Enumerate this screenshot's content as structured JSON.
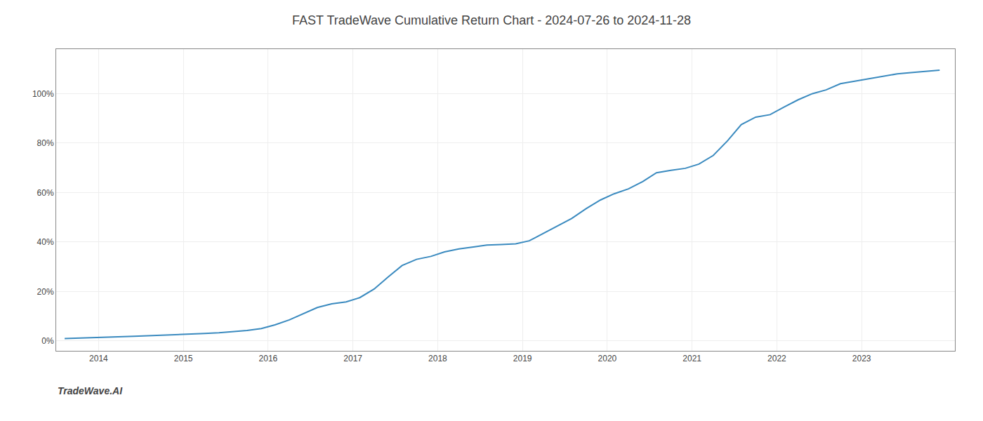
{
  "chart_data": {
    "type": "line",
    "title": "FAST TradeWave Cumulative Return Chart - 2024-07-26 to 2024-11-28",
    "annotations": [
      "TradeWave.AI"
    ],
    "color": "#3a8abf",
    "grid": true,
    "x": [
      2013.6,
      2013.75,
      2013.92,
      2014.08,
      2014.25,
      2014.42,
      2014.58,
      2014.75,
      2014.92,
      2015.08,
      2015.25,
      2015.42,
      2015.58,
      2015.75,
      2015.92,
      2016.08,
      2016.25,
      2016.42,
      2016.58,
      2016.75,
      2016.92,
      2017.08,
      2017.25,
      2017.42,
      2017.58,
      2017.75,
      2017.92,
      2018.08,
      2018.25,
      2018.42,
      2018.58,
      2018.75,
      2018.92,
      2019.08,
      2019.25,
      2019.42,
      2019.58,
      2019.75,
      2019.92,
      2020.08,
      2020.25,
      2020.42,
      2020.58,
      2020.75,
      2020.92,
      2021.08,
      2021.25,
      2021.42,
      2021.58,
      2021.75,
      2021.92,
      2022.08,
      2022.25,
      2022.42,
      2022.58,
      2022.75,
      2022.92,
      2023.08,
      2023.25,
      2023.42,
      2023.58,
      2023.75,
      2023.92
    ],
    "values": [
      1.0,
      1.2,
      1.4,
      1.5,
      1.7,
      1.9,
      2.1,
      2.3,
      2.6,
      2.8,
      3.0,
      3.3,
      3.7,
      4.2,
      5.0,
      6.5,
      8.5,
      11.0,
      13.5,
      15.0,
      15.8,
      17.5,
      21.0,
      26.0,
      30.5,
      33.0,
      34.2,
      36.0,
      37.2,
      38.0,
      38.8,
      39.0,
      39.3,
      40.5,
      43.5,
      46.5,
      49.5,
      53.5,
      57.0,
      59.5,
      61.5,
      64.5,
      68.0,
      69.0,
      69.8,
      71.5,
      75.0,
      81.0,
      87.5,
      90.5,
      91.5,
      94.5,
      97.5,
      100.0,
      101.5,
      104.0,
      105.0,
      106.0,
      107.0,
      108.0,
      108.5,
      109.0,
      109.5
    ],
    "xlim": [
      2013.5,
      2024.1
    ],
    "xticks": [
      2014,
      2015,
      2016,
      2017,
      2018,
      2019,
      2020,
      2021,
      2022,
      2023
    ],
    "ylim": [
      -4,
      118
    ],
    "yticks": [
      {
        "value": 0,
        "label": "0%"
      },
      {
        "value": 20,
        "label": "20%"
      },
      {
        "value": 40,
        "label": "40%"
      },
      {
        "value": 60,
        "label": "60%"
      },
      {
        "value": 80,
        "label": "80%"
      },
      {
        "value": 100,
        "label": "100%"
      }
    ]
  }
}
